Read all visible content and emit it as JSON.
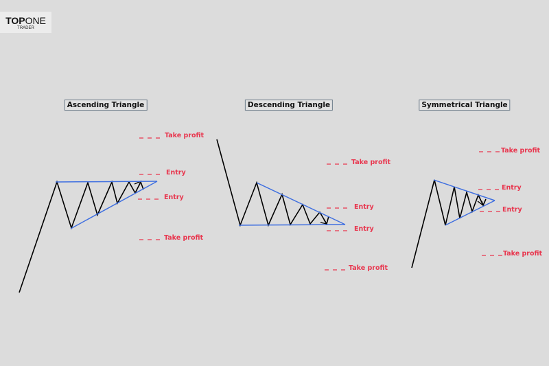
{
  "logo": {
    "brand_bold": "TOP",
    "brand_light": "ONE",
    "sub": "TRADER"
  },
  "colors": {
    "background": "#dcdcdc",
    "trendline": "#3f6fe0",
    "price": "#000000",
    "levels": "#e8364e"
  },
  "patterns": [
    {
      "title": "Ascending Triangle",
      "labels": [
        "Take profit",
        "Entry",
        "Entry",
        "Take profit"
      ]
    },
    {
      "title": "Descending Triangle",
      "labels": [
        "Take profit",
        "Entry",
        "Entry",
        "Take profit"
      ]
    },
    {
      "title": "Symmetrical Triangle",
      "labels": [
        "Take profit",
        "Entry",
        "Entry",
        "Take profit"
      ]
    }
  ]
}
